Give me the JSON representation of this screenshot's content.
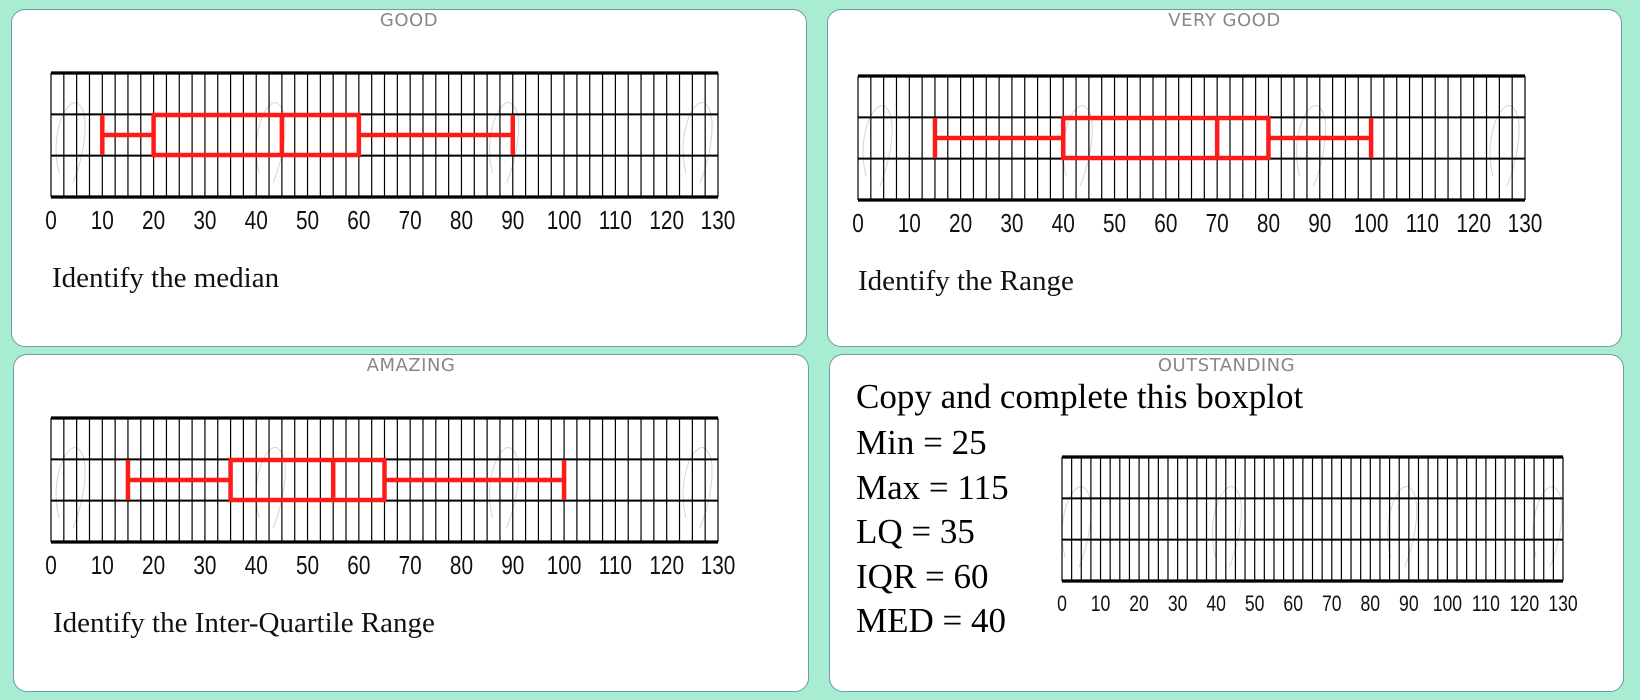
{
  "colors": {
    "background": "#a8ecd2",
    "box": "#ff1a1a",
    "grid": "#000000",
    "label": "#888888"
  },
  "cards": [
    {
      "label": "GOOD",
      "prompt": "Identify the median"
    },
    {
      "label": "VERY GOOD",
      "prompt": "Identify the Range"
    },
    {
      "label": "AMAZING",
      "prompt": "Identify the Inter-Quartile Range"
    },
    {
      "label": "OUTSTANDING",
      "title": "Copy and complete this boxplot",
      "stats": [
        "Min = 25",
        "Max = 115",
        "LQ = 35",
        "IQR = 60",
        "MED = 40"
      ]
    }
  ],
  "chart_data": [
    {
      "type": "boxplot",
      "xlim": [
        0,
        130
      ],
      "ticks": [
        "0",
        "10",
        "20",
        "30",
        "40",
        "50",
        "60",
        "70",
        "80",
        "90",
        "100",
        "110",
        "120",
        "130"
      ],
      "grid": true,
      "min": 10,
      "q1": 20,
      "median": 45,
      "q3": 60,
      "max": 90
    },
    {
      "type": "boxplot",
      "xlim": [
        0,
        130
      ],
      "ticks": [
        "0",
        "10",
        "20",
        "30",
        "40",
        "50",
        "60",
        "70",
        "80",
        "90",
        "100",
        "110",
        "120",
        "130"
      ],
      "grid": true,
      "min": 15,
      "q1": 40,
      "median": 70,
      "q3": 80,
      "max": 100
    },
    {
      "type": "boxplot",
      "xlim": [
        0,
        130
      ],
      "ticks": [
        "0",
        "10",
        "20",
        "30",
        "40",
        "50",
        "60",
        "70",
        "80",
        "90",
        "100",
        "110",
        "120",
        "130"
      ],
      "grid": true,
      "min": 15,
      "q1": 35,
      "median": 55,
      "q3": 65,
      "max": 100
    },
    {
      "type": "boxplot",
      "xlim": [
        0,
        130
      ],
      "ticks": [
        "0",
        "10",
        "20",
        "30",
        "40",
        "50",
        "60",
        "70",
        "80",
        "90",
        "100",
        "110",
        "120",
        "130"
      ],
      "grid": true
    }
  ]
}
